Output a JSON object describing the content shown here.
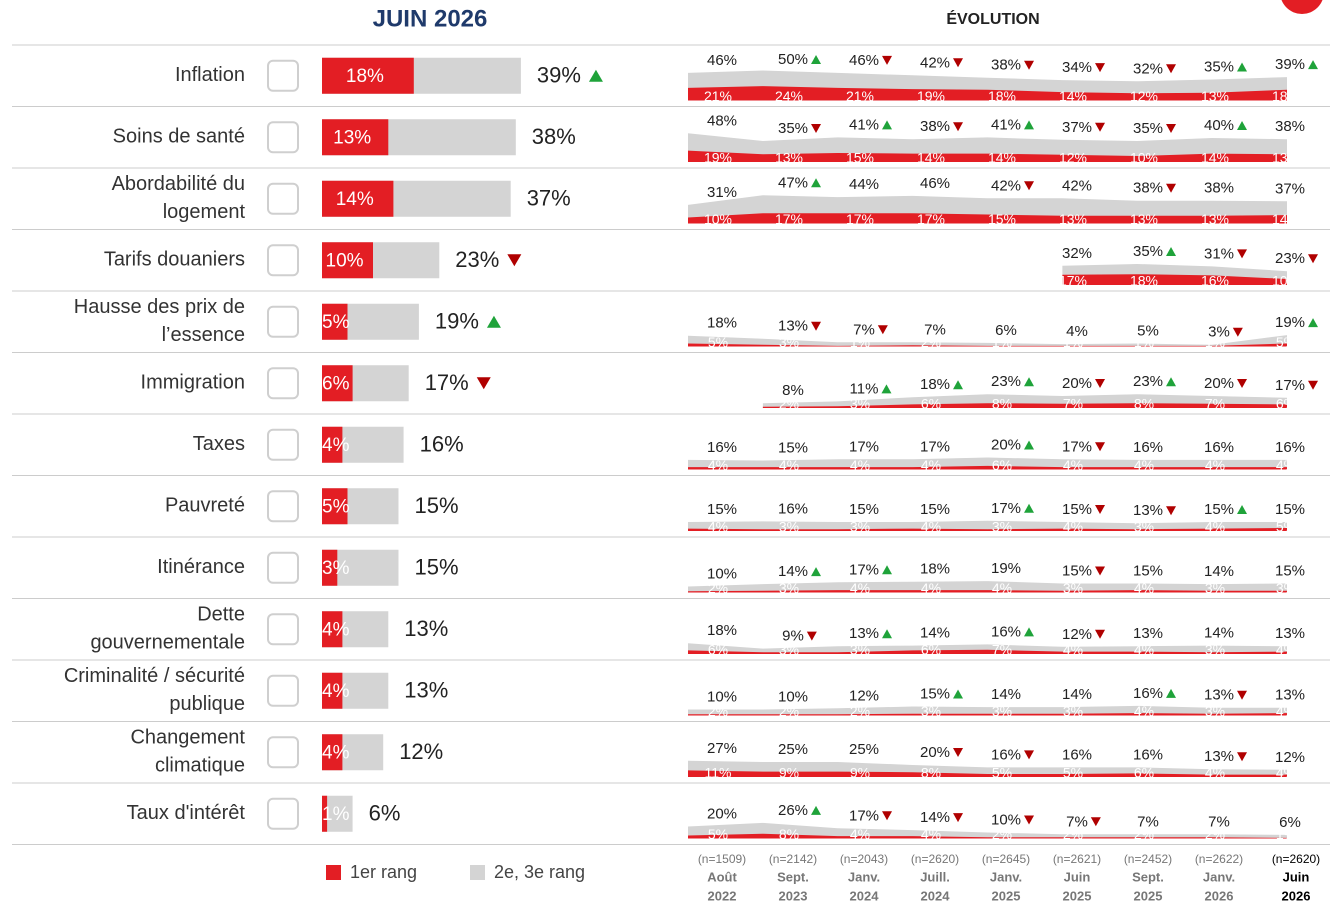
{
  "chart_data": {
    "type": "ranked-bar-evolution",
    "title": "JUIN 2026",
    "evolution_title": "ÉVOLUTION",
    "series": [
      {
        "name": "1er rang",
        "color": "#e31e24"
      },
      {
        "name": "2e, 3e rang",
        "color": "#d4d4d4"
      }
    ],
    "trend_colors": {
      "up": "#1fa33a",
      "down": "#b00000"
    },
    "periods": [
      {
        "n": "(n=1509)",
        "month": "Août",
        "year": "2022"
      },
      {
        "n": "(n=2142)",
        "month": "Sept.",
        "year": "2023"
      },
      {
        "n": "(n=2043)",
        "month": "Janv.",
        "year": "2024"
      },
      {
        "n": "(n=2620)",
        "month": "Juill.",
        "year": "2024"
      },
      {
        "n": "(n=2645)",
        "month": "Janv.",
        "year": "2025"
      },
      {
        "n": "(n=2621)",
        "month": "Juin",
        "year": "2025"
      },
      {
        "n": "(n=2452)",
        "month": "Sept.",
        "year": "2025"
      },
      {
        "n": "(n=2622)",
        "month": "Janv.",
        "year": "2026"
      },
      {
        "n": "(n=2620)",
        "month": "Juin",
        "year": "2026"
      }
    ],
    "rows": [
      {
        "label": [
          "Inflation"
        ],
        "first": 18,
        "first_label": "18%",
        "total": 39,
        "total_label": "39%",
        "trend": "up",
        "evo_total": [
          46,
          50,
          46,
          42,
          38,
          34,
          32,
          35,
          39
        ],
        "evo_total_labels": [
          "46%",
          "50%",
          "46%",
          "42%",
          "38%",
          "34%",
          "32%",
          "35%",
          "39%"
        ],
        "evo_first": [
          21,
          24,
          21,
          19,
          18,
          14,
          12,
          13,
          18
        ],
        "evo_first_labels": [
          "21%",
          "24%",
          "21%",
          "19%",
          "18%",
          "14%",
          "12%",
          "13%",
          "18%"
        ],
        "evo_trend": [
          null,
          "up",
          "down",
          "down",
          "down",
          "down",
          "down",
          "up",
          "up"
        ]
      },
      {
        "label": [
          "Soins de santé"
        ],
        "first": 13,
        "first_label": "13%",
        "total": 38,
        "total_label": "38%",
        "trend": null,
        "evo_total": [
          48,
          35,
          41,
          38,
          41,
          37,
          35,
          40,
          38
        ],
        "evo_total_labels": [
          "48%",
          "35%",
          "41%",
          "38%",
          "41%",
          "37%",
          "35%",
          "40%",
          "38%"
        ],
        "evo_first": [
          19,
          13,
          15,
          14,
          14,
          12,
          10,
          14,
          13
        ],
        "evo_first_labels": [
          "19%",
          "13%",
          "15%",
          "14%",
          "14%",
          "12%",
          "10%",
          "14%",
          "13%"
        ],
        "evo_trend": [
          null,
          "down",
          "up",
          "down",
          "up",
          "down",
          "down",
          "up",
          null
        ]
      },
      {
        "label": [
          "Abordabilité du",
          "logement"
        ],
        "first": 14,
        "first_label": "14%",
        "total": 37,
        "total_label": "37%",
        "trend": null,
        "evo_total": [
          31,
          47,
          44,
          46,
          42,
          42,
          38,
          38,
          37
        ],
        "evo_total_labels": [
          "31%",
          "47%",
          "44%",
          "46%",
          "42%",
          "42%",
          "38%",
          "38%",
          "37%"
        ],
        "evo_first": [
          10,
          17,
          17,
          17,
          15,
          13,
          13,
          13,
          14
        ],
        "evo_first_labels": [
          "10%",
          "17%",
          "17%",
          "17%",
          "15%",
          "13%",
          "13%",
          "13%",
          "14%"
        ],
        "evo_trend": [
          null,
          "up",
          null,
          null,
          "down",
          null,
          "down",
          null,
          null
        ]
      },
      {
        "label": [
          "Tarifs douaniers"
        ],
        "first": 10,
        "first_label": "10%",
        "total": 23,
        "total_label": "23%",
        "trend": "down",
        "evo_total": [
          null,
          null,
          null,
          null,
          null,
          32,
          35,
          31,
          23
        ],
        "evo_total_labels": [
          null,
          null,
          null,
          null,
          null,
          "32%",
          "35%",
          "31%",
          "23%"
        ],
        "evo_first": [
          null,
          null,
          null,
          null,
          null,
          17,
          18,
          16,
          10
        ],
        "evo_first_labels": [
          null,
          null,
          null,
          null,
          null,
          "17%",
          "18%",
          "16%",
          "10%"
        ],
        "evo_trend": [
          null,
          null,
          null,
          null,
          null,
          null,
          "up",
          "down",
          "down"
        ]
      },
      {
        "label": [
          "Hausse des prix de",
          "l’essence"
        ],
        "first": 5,
        "first_label": "5%",
        "total": 19,
        "total_label": "19%",
        "trend": "up",
        "evo_total": [
          18,
          13,
          7,
          7,
          6,
          4,
          5,
          3,
          19
        ],
        "evo_total_labels": [
          "18%",
          "13%",
          "7%",
          "7%",
          "6%",
          "4%",
          "5%",
          "3%",
          "19%"
        ],
        "evo_first": [
          5,
          3,
          1,
          2,
          1,
          1,
          1,
          1,
          5
        ],
        "evo_first_labels": [
          "5%",
          "3%",
          "1%",
          "2%",
          "1%",
          "1%",
          "1%",
          "1%",
          "5%"
        ],
        "evo_trend": [
          null,
          "down",
          "down",
          null,
          null,
          null,
          null,
          "down",
          "up"
        ]
      },
      {
        "label": [
          "Immigration"
        ],
        "first": 6,
        "first_label": "6%",
        "total": 17,
        "total_label": "17%",
        "trend": "down",
        "evo_total": [
          null,
          8,
          11,
          18,
          23,
          20,
          23,
          20,
          17
        ],
        "evo_total_labels": [
          null,
          "8%",
          "11%",
          "18%",
          "23%",
          "20%",
          "23%",
          "20%",
          "17%"
        ],
        "evo_first": [
          null,
          2,
          3,
          6,
          8,
          7,
          8,
          7,
          6
        ],
        "evo_first_labels": [
          null,
          "2%",
          "3%",
          "6%",
          "8%",
          "7%",
          "8%",
          "7%",
          "6%"
        ],
        "evo_trend": [
          null,
          null,
          "up",
          "up",
          "up",
          "down",
          "up",
          "down",
          "down"
        ]
      },
      {
        "label": [
          "Taxes"
        ],
        "first": 4,
        "first_label": "4%",
        "total": 16,
        "total_label": "16%",
        "trend": null,
        "evo_total": [
          16,
          15,
          17,
          17,
          20,
          17,
          16,
          16,
          16
        ],
        "evo_total_labels": [
          "16%",
          "15%",
          "17%",
          "17%",
          "20%",
          "17%",
          "16%",
          "16%",
          "16%"
        ],
        "evo_first": [
          4,
          4,
          4,
          4,
          6,
          4,
          4,
          4,
          4
        ],
        "evo_first_labels": [
          "4%",
          "4%",
          "4%",
          "4%",
          "6%",
          "4%",
          "4%",
          "4%",
          "4%"
        ],
        "evo_trend": [
          null,
          null,
          null,
          null,
          "up",
          "down",
          null,
          null,
          null
        ]
      },
      {
        "label": [
          "Pauvreté"
        ],
        "first": 5,
        "first_label": "5%",
        "total": 15,
        "total_label": "15%",
        "trend": null,
        "evo_total": [
          15,
          16,
          15,
          15,
          17,
          15,
          13,
          15,
          15
        ],
        "evo_total_labels": [
          "15%",
          "16%",
          "15%",
          "15%",
          "17%",
          "15%",
          "13%",
          "15%",
          "15%"
        ],
        "evo_first": [
          4,
          3,
          3,
          4,
          3,
          4,
          3,
          4,
          5
        ],
        "evo_first_labels": [
          "4%",
          "3%",
          "3%",
          "4%",
          "3%",
          "4%",
          "3%",
          "4%",
          "5%"
        ],
        "evo_trend": [
          null,
          null,
          null,
          null,
          "up",
          "down",
          "down",
          "up",
          null
        ]
      },
      {
        "label": [
          "Itinérance"
        ],
        "first": 3,
        "first_label": "3%",
        "total": 15,
        "total_label": "15%",
        "trend": null,
        "evo_total": [
          10,
          14,
          17,
          18,
          19,
          15,
          15,
          14,
          15
        ],
        "evo_total_labels": [
          "10%",
          "14%",
          "17%",
          "18%",
          "19%",
          "15%",
          "15%",
          "14%",
          "15%"
        ],
        "evo_first": [
          2,
          3,
          4,
          4,
          4,
          3,
          4,
          3,
          3
        ],
        "evo_first_labels": [
          "2%",
          "3%",
          "4%",
          "4%",
          "4%",
          "3%",
          "4%",
          "3%",
          "3%"
        ],
        "evo_trend": [
          null,
          "up",
          "up",
          null,
          null,
          "down",
          null,
          null,
          null
        ]
      },
      {
        "label": [
          "Dette",
          "gouvernementale"
        ],
        "first": 4,
        "first_label": "4%",
        "total": 13,
        "total_label": "13%",
        "trend": null,
        "evo_total": [
          18,
          9,
          13,
          14,
          16,
          12,
          13,
          14,
          13
        ],
        "evo_total_labels": [
          "18%",
          "9%",
          "13%",
          "14%",
          "16%",
          "12%",
          "13%",
          "14%",
          "13%"
        ],
        "evo_first": [
          6,
          3,
          3,
          6,
          7,
          4,
          4,
          3,
          4
        ],
        "evo_first_labels": [
          "6%",
          "3%",
          "3%",
          "6%",
          "7%",
          "4%",
          "4%",
          "3%",
          "4%"
        ],
        "evo_trend": [
          null,
          "down",
          "up",
          null,
          "up",
          "down",
          null,
          null,
          null
        ]
      },
      {
        "label": [
          "Criminalité / sécurité",
          "publique"
        ],
        "first": 4,
        "first_label": "4%",
        "total": 13,
        "total_label": "13%",
        "trend": null,
        "evo_total": [
          10,
          10,
          12,
          15,
          14,
          14,
          16,
          13,
          13
        ],
        "evo_total_labels": [
          "10%",
          "10%",
          "12%",
          "15%",
          "14%",
          "14%",
          "16%",
          "13%",
          "13%"
        ],
        "evo_first": [
          2,
          2,
          2,
          3,
          3,
          3,
          4,
          3,
          4
        ],
        "evo_first_labels": [
          "2%",
          "2%",
          "2%",
          "3%",
          "3%",
          "3%",
          "4%",
          "3%",
          "4%"
        ],
        "evo_trend": [
          null,
          null,
          null,
          "up",
          null,
          null,
          "up",
          "down",
          null
        ]
      },
      {
        "label": [
          "Changement",
          "climatique"
        ],
        "first": 4,
        "first_label": "4%",
        "total": 12,
        "total_label": "12%",
        "trend": null,
        "evo_total": [
          27,
          25,
          25,
          20,
          16,
          16,
          16,
          13,
          12
        ],
        "evo_total_labels": [
          "27%",
          "25%",
          "25%",
          "20%",
          "16%",
          "16%",
          "16%",
          "13%",
          "12%"
        ],
        "evo_first": [
          11,
          9,
          9,
          8,
          5,
          5,
          6,
          4,
          4
        ],
        "evo_first_labels": [
          "11%",
          "9%",
          "9%",
          "8%",
          "5%",
          "5%",
          "6%",
          "4%",
          "4%"
        ],
        "evo_trend": [
          null,
          null,
          null,
          "down",
          "down",
          null,
          null,
          "down",
          null
        ]
      },
      {
        "label": [
          "Taux d'intérêt"
        ],
        "first": 1,
        "first_label": "1%",
        "total": 6,
        "total_label": "6%",
        "trend": null,
        "evo_total": [
          20,
          26,
          17,
          14,
          10,
          7,
          7,
          7,
          6
        ],
        "evo_total_labels": [
          "20%",
          "26%",
          "17%",
          "14%",
          "10%",
          "7%",
          "7%",
          "7%",
          "6%"
        ],
        "evo_first": [
          5,
          8,
          4,
          4,
          2,
          2,
          2,
          2,
          1
        ],
        "evo_first_labels": [
          "5%",
          "8%",
          "4%",
          "4%",
          "2%",
          "2%",
          "2%",
          "2%",
          "1%"
        ],
        "evo_trend": [
          null,
          "up",
          "down",
          "down",
          "down",
          "down",
          null,
          null,
          null
        ]
      }
    ]
  }
}
